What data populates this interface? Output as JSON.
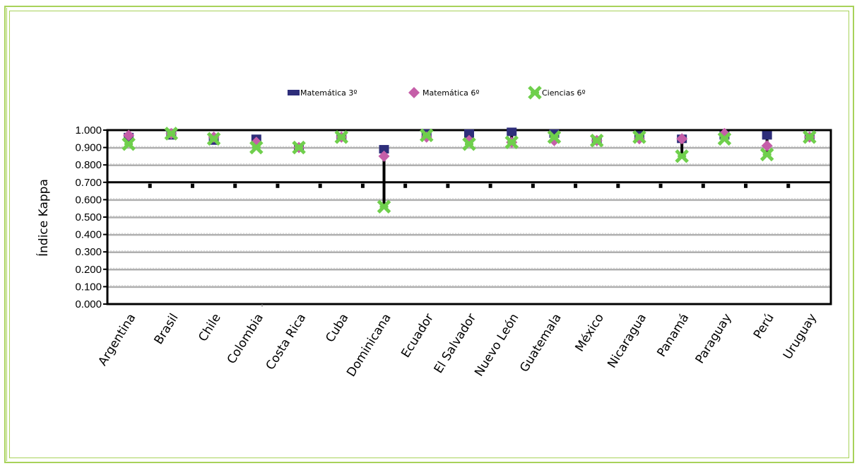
{
  "colors": {
    "frame": "#a8d25a",
    "mat3": "#2e2e7a",
    "mat6": "#c55ea8",
    "cien6": "#6fcf4c",
    "grid": "#b0b0b0"
  },
  "chart_data": {
    "type": "scatter",
    "ylabel": "Índice Kappa",
    "ylim": [
      0,
      1
    ],
    "yticks": [
      "0.000",
      "0.100",
      "0.200",
      "0.300",
      "0.400",
      "0.500",
      "0.600",
      "0.700",
      "0.800",
      "0.900",
      "1.000"
    ],
    "categories": [
      "Argentina",
      "Brasil",
      "Chile",
      "Colombia",
      "Costa Rica",
      "Cuba",
      "Dominicana",
      "Ecuador",
      "El Salvador",
      "Nuevo León",
      "Guatemala",
      "México",
      "Nicaragua",
      "Panamá",
      "Paraguay",
      "Perú",
      "Uruguay"
    ],
    "legend_position": "top",
    "series": [
      {
        "name": "Matemática 3º",
        "color": "#2e2e7a",
        "marker": "square",
        "values": [
          0.96,
          0.97,
          0.94,
          0.95,
          0.9,
          0.96,
          0.89,
          0.98,
          0.98,
          0.99,
          0.98,
          0.94,
          0.97,
          0.95,
          0.97,
          0.97,
          0.96
        ]
      },
      {
        "name": "Matemática 6º",
        "color": "#c55ea8",
        "marker": "diamond",
        "values": [
          0.97,
          0.98,
          0.96,
          0.93,
          0.9,
          0.96,
          0.85,
          0.96,
          0.94,
          0.93,
          0.94,
          0.94,
          0.95,
          0.95,
          0.98,
          0.91,
          0.96
        ]
      },
      {
        "name": "Ciencias 6º",
        "color": "#6fcf4c",
        "marker": "star",
        "values": [
          0.92,
          0.98,
          0.95,
          0.9,
          0.9,
          0.96,
          0.56,
          0.97,
          0.92,
          0.93,
          0.96,
          0.94,
          0.96,
          0.85,
          0.95,
          0.86,
          0.96
        ]
      }
    ]
  }
}
